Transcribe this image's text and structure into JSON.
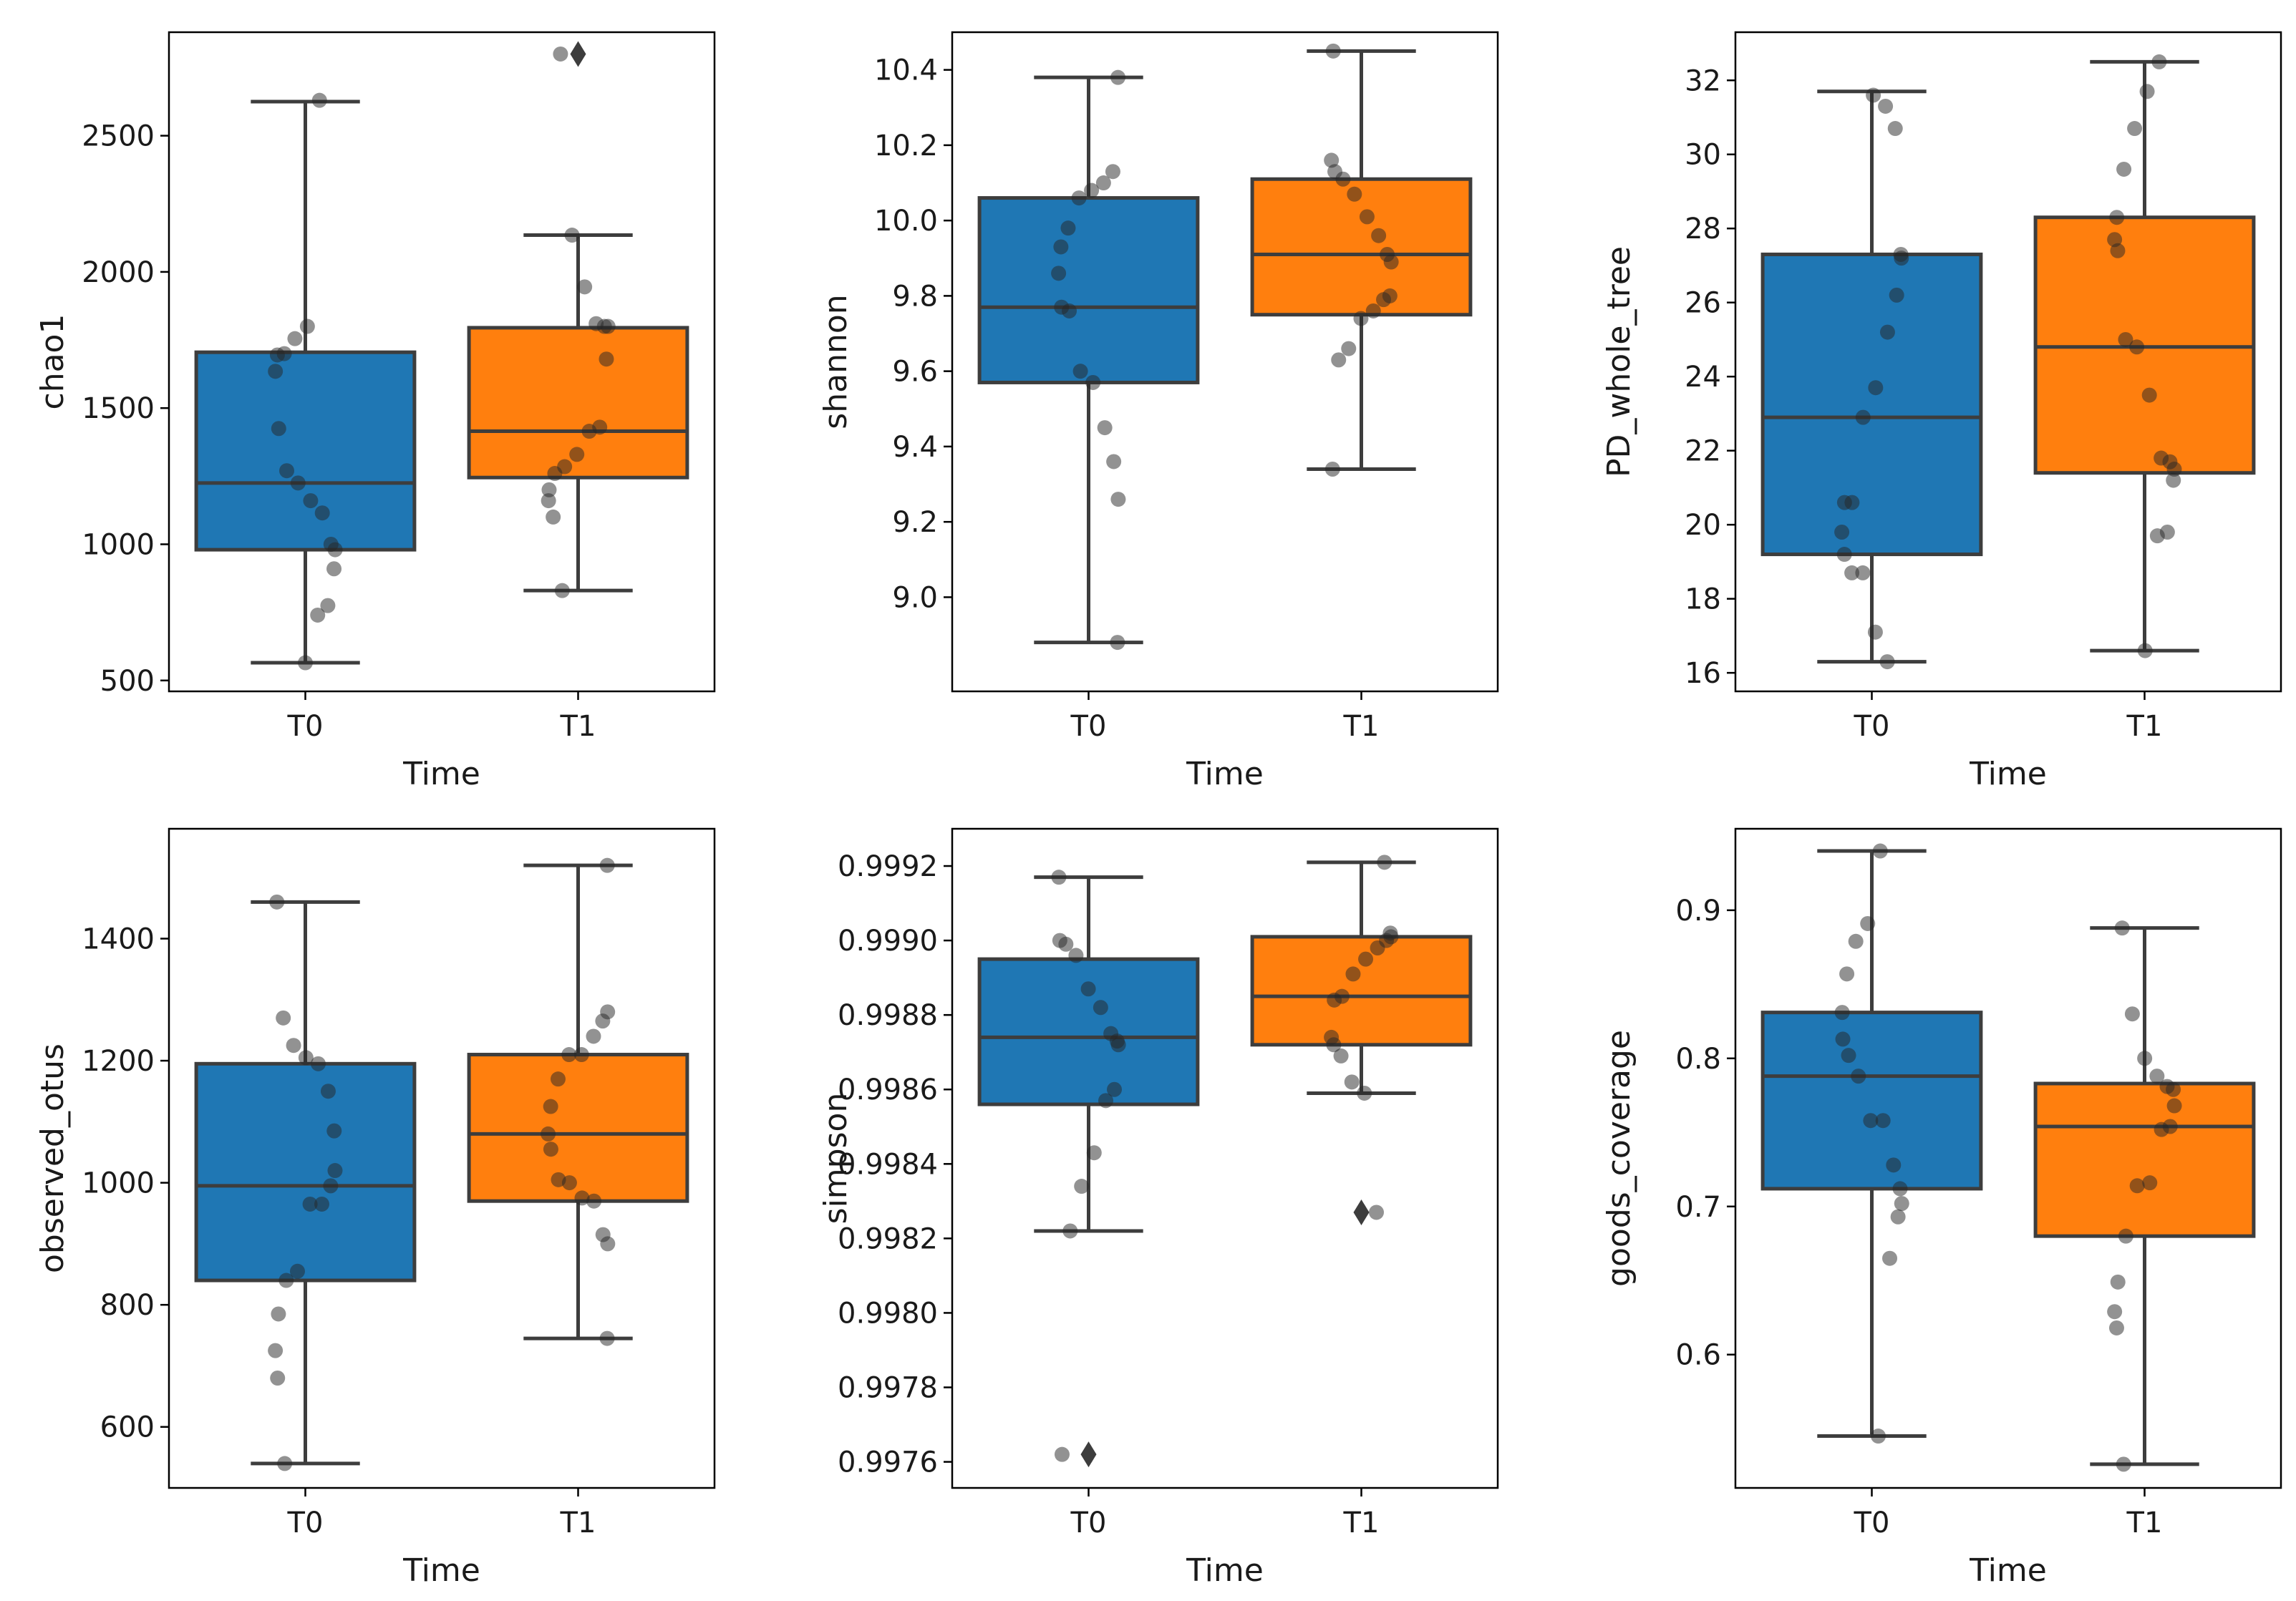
{
  "chart_data": [
    {
      "type": "box",
      "xlabel": "Time",
      "ylabel": "chao1",
      "ylim": [
        460,
        2880
      ],
      "yticks": [
        500,
        1000,
        1500,
        2000,
        2500
      ],
      "tick_labels": [
        "500",
        "1000",
        "1500",
        "2000",
        "2500"
      ],
      "categories": [
        "T0",
        "T1"
      ],
      "boxes": [
        {
          "group": "T0",
          "color": "#1f77b4",
          "q1": 980,
          "median": 1225,
          "q3": 1705,
          "whisker_low": 565,
          "whisker_high": 2625,
          "outliers": [],
          "points": [
            565,
            740,
            775,
            910,
            980,
            1000,
            1115,
            1160,
            1225,
            1270,
            1425,
            1635,
            1695,
            1700,
            1755,
            1800,
            2630
          ]
        },
        {
          "group": "T1",
          "color": "#ff7f0e",
          "q1": 1245,
          "median": 1415,
          "q3": 1795,
          "whisker_low": 830,
          "whisker_high": 2135,
          "outliers": [
            2800
          ],
          "points": [
            830,
            1100,
            1160,
            1200,
            1260,
            1285,
            1330,
            1415,
            1430,
            1680,
            1800,
            1800,
            1810,
            1945,
            2135,
            2800
          ]
        }
      ]
    },
    {
      "type": "box",
      "xlabel": "Time",
      "ylabel": "shannon",
      "ylim": [
        8.75,
        10.5
      ],
      "yticks": [
        9.0,
        9.2,
        9.4,
        9.6,
        9.8,
        10.0,
        10.2,
        10.4
      ],
      "tick_labels": [
        "9.0",
        "9.2",
        "9.4",
        "9.6",
        "9.8",
        "10.0",
        "10.2",
        "10.4"
      ],
      "categories": [
        "T0",
        "T1"
      ],
      "boxes": [
        {
          "group": "T0",
          "color": "#1f77b4",
          "q1": 9.57,
          "median": 9.77,
          "q3": 10.06,
          "whisker_low": 8.88,
          "whisker_high": 10.38,
          "outliers": [],
          "points": [
            8.88,
            9.26,
            9.36,
            9.45,
            9.57,
            9.6,
            9.76,
            9.77,
            9.86,
            9.93,
            9.98,
            10.06,
            10.08,
            10.1,
            10.13,
            10.38
          ]
        },
        {
          "group": "T1",
          "color": "#ff7f0e",
          "q1": 9.75,
          "median": 9.91,
          "q3": 10.11,
          "whisker_low": 9.34,
          "whisker_high": 10.45,
          "outliers": [],
          "points": [
            9.34,
            9.63,
            9.66,
            9.74,
            9.76,
            9.79,
            9.8,
            9.89,
            9.91,
            9.96,
            10.01,
            10.07,
            10.11,
            10.13,
            10.16,
            10.45
          ]
        }
      ]
    },
    {
      "type": "box",
      "xlabel": "Time",
      "ylabel": "PD_whole_tree",
      "ylim": [
        15.5,
        33.3
      ],
      "yticks": [
        16,
        18,
        20,
        22,
        24,
        26,
        28,
        30,
        32
      ],
      "tick_labels": [
        "16",
        "18",
        "20",
        "22",
        "24",
        "26",
        "28",
        "30",
        "32"
      ],
      "categories": [
        "T0",
        "T1"
      ],
      "boxes": [
        {
          "group": "T0",
          "color": "#1f77b4",
          "q1": 19.2,
          "median": 22.9,
          "q3": 27.3,
          "whisker_low": 16.3,
          "whisker_high": 31.7,
          "outliers": [],
          "points": [
            16.3,
            17.1,
            18.7,
            18.7,
            19.2,
            19.8,
            20.6,
            20.6,
            22.9,
            23.7,
            25.2,
            26.2,
            27.2,
            27.3,
            30.7,
            31.3,
            31.6
          ]
        },
        {
          "group": "T1",
          "color": "#ff7f0e",
          "q1": 21.4,
          "median": 24.8,
          "q3": 28.3,
          "whisker_low": 16.6,
          "whisker_high": 32.5,
          "outliers": [],
          "points": [
            16.6,
            19.7,
            19.8,
            21.2,
            21.5,
            21.7,
            21.8,
            23.5,
            24.8,
            25.0,
            27.4,
            27.7,
            28.3,
            29.6,
            30.7,
            31.7,
            32.5
          ]
        }
      ]
    },
    {
      "type": "box",
      "xlabel": "Time",
      "ylabel": "observed_otus",
      "ylim": [
        500,
        1580
      ],
      "yticks": [
        600,
        800,
        1000,
        1200,
        1400
      ],
      "tick_labels": [
        "600",
        "800",
        "1000",
        "1200",
        "1400"
      ],
      "categories": [
        "T0",
        "T1"
      ],
      "boxes": [
        {
          "group": "T0",
          "color": "#1f77b4",
          "q1": 840,
          "median": 995,
          "q3": 1195,
          "whisker_low": 540,
          "whisker_high": 1460,
          "outliers": [],
          "points": [
            540,
            680,
            725,
            785,
            840,
            855,
            965,
            965,
            995,
            1020,
            1085,
            1150,
            1195,
            1205,
            1225,
            1270,
            1460
          ]
        },
        {
          "group": "T1",
          "color": "#ff7f0e",
          "q1": 970,
          "median": 1080,
          "q3": 1210,
          "whisker_low": 745,
          "whisker_high": 1520,
          "outliers": [],
          "points": [
            745,
            900,
            915,
            970,
            975,
            1000,
            1005,
            1055,
            1080,
            1125,
            1170,
            1210,
            1210,
            1240,
            1265,
            1280,
            1520
          ]
        }
      ]
    },
    {
      "type": "box",
      "xlabel": "Time",
      "ylabel": "simpson",
      "ylim": [
        0.99753,
        0.9993
      ],
      "yticks": [
        0.9976,
        0.9978,
        0.998,
        0.9982,
        0.9984,
        0.9986,
        0.9988,
        0.999,
        0.9992
      ],
      "tick_labels": [
        "0.9976",
        "0.9978",
        "0.9980",
        "0.9982",
        "0.9984",
        "0.9986",
        "0.9988",
        "0.9990",
        "0.9992"
      ],
      "categories": [
        "T0",
        "T1"
      ],
      "boxes": [
        {
          "group": "T0",
          "color": "#1f77b4",
          "q1": 0.99856,
          "median": 0.99874,
          "q3": 0.99895,
          "whisker_low": 0.99822,
          "whisker_high": 0.99917,
          "outliers": [
            0.99762
          ],
          "points": [
            0.99762,
            0.99822,
            0.99834,
            0.99843,
            0.99857,
            0.9986,
            0.99872,
            0.99873,
            0.99875,
            0.99882,
            0.99887,
            0.99896,
            0.99899,
            0.999,
            0.99917
          ]
        },
        {
          "group": "T1",
          "color": "#ff7f0e",
          "q1": 0.99872,
          "median": 0.99885,
          "q3": 0.99901,
          "whisker_low": 0.99859,
          "whisker_high": 0.99921,
          "outliers": [
            0.99827
          ],
          "points": [
            0.99827,
            0.99859,
            0.99862,
            0.99869,
            0.99872,
            0.99874,
            0.99884,
            0.99885,
            0.99891,
            0.99895,
            0.99898,
            0.999,
            0.99901,
            0.99902,
            0.99921
          ]
        }
      ]
    },
    {
      "type": "box",
      "xlabel": "Time",
      "ylabel": "goods_coverage",
      "ylim": [
        0.51,
        0.955
      ],
      "yticks": [
        0.6,
        0.7,
        0.8,
        0.9
      ],
      "tick_labels": [
        "0.6",
        "0.7",
        "0.8",
        "0.9"
      ],
      "categories": [
        "T0",
        "T1"
      ],
      "boxes": [
        {
          "group": "T0",
          "color": "#1f77b4",
          "q1": 0.712,
          "median": 0.788,
          "q3": 0.831,
          "whisker_low": 0.545,
          "whisker_high": 0.94,
          "outliers": [],
          "points": [
            0.545,
            0.665,
            0.693,
            0.702,
            0.712,
            0.728,
            0.758,
            0.758,
            0.788,
            0.802,
            0.813,
            0.831,
            0.857,
            0.879,
            0.891,
            0.94
          ]
        },
        {
          "group": "T1",
          "color": "#ff7f0e",
          "q1": 0.68,
          "median": 0.754,
          "q3": 0.783,
          "whisker_low": 0.526,
          "whisker_high": 0.888,
          "outliers": [],
          "points": [
            0.526,
            0.618,
            0.629,
            0.649,
            0.68,
            0.714,
            0.716,
            0.752,
            0.754,
            0.768,
            0.779,
            0.781,
            0.788,
            0.8,
            0.83,
            0.888
          ]
        }
      ]
    }
  ]
}
